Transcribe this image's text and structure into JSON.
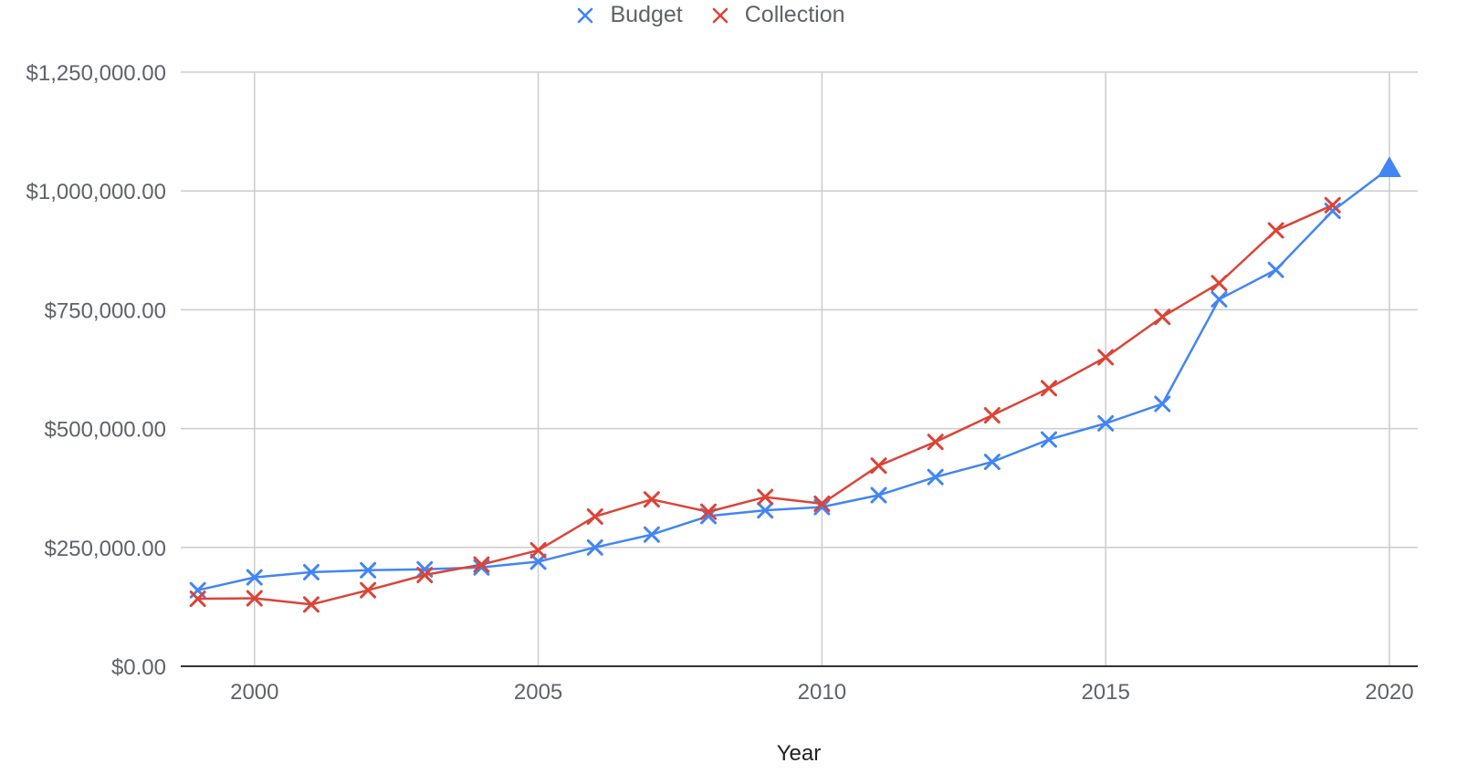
{
  "chart_data": {
    "type": "line",
    "title": "",
    "xlabel": "Year",
    "ylabel": "",
    "x": [
      1999,
      2000,
      2001,
      2002,
      2003,
      2004,
      2005,
      2006,
      2007,
      2008,
      2009,
      2010,
      2011,
      2012,
      2013,
      2014,
      2015,
      2016,
      2017,
      2018,
      2019,
      2020
    ],
    "xlim": [
      1998.7,
      2020.5
    ],
    "ylim": [
      0,
      1250000
    ],
    "x_ticks": [
      {
        "value": 2000,
        "label": "2000"
      },
      {
        "value": 2005,
        "label": "2005"
      },
      {
        "value": 2010,
        "label": "2010"
      },
      {
        "value": 2015,
        "label": "2015"
      },
      {
        "value": 2020,
        "label": "2020"
      }
    ],
    "y_ticks": [
      {
        "value": 0,
        "label": "$0.00"
      },
      {
        "value": 250000,
        "label": "$250,000.00"
      },
      {
        "value": 500000,
        "label": "$500,000.00"
      },
      {
        "value": 750000,
        "label": "$750,000.00"
      },
      {
        "value": 1000000,
        "label": "$1,000,000.00"
      },
      {
        "value": 1250000,
        "label": "$1,250,000.00"
      }
    ],
    "grid": true,
    "legend_position": "top-center",
    "series": [
      {
        "name": "Budget",
        "color": "#4285f4",
        "marker": "x",
        "values": [
          160000,
          187000,
          198000,
          202000,
          204000,
          208000,
          220000,
          250000,
          277000,
          316000,
          328000,
          335000,
          360000,
          398000,
          430000,
          477000,
          511000,
          552000,
          772000,
          834000,
          958000,
          1048000
        ],
        "last_point_marker": "triangle"
      },
      {
        "name": "Collection",
        "color": "#db4437",
        "marker": "x",
        "values": [
          142000,
          143000,
          130000,
          160000,
          192000,
          214000,
          244000,
          315000,
          351000,
          325000,
          356000,
          342000,
          422000,
          472000,
          528000,
          585000,
          650000,
          735000,
          806000,
          917000,
          970000,
          null
        ]
      }
    ]
  }
}
